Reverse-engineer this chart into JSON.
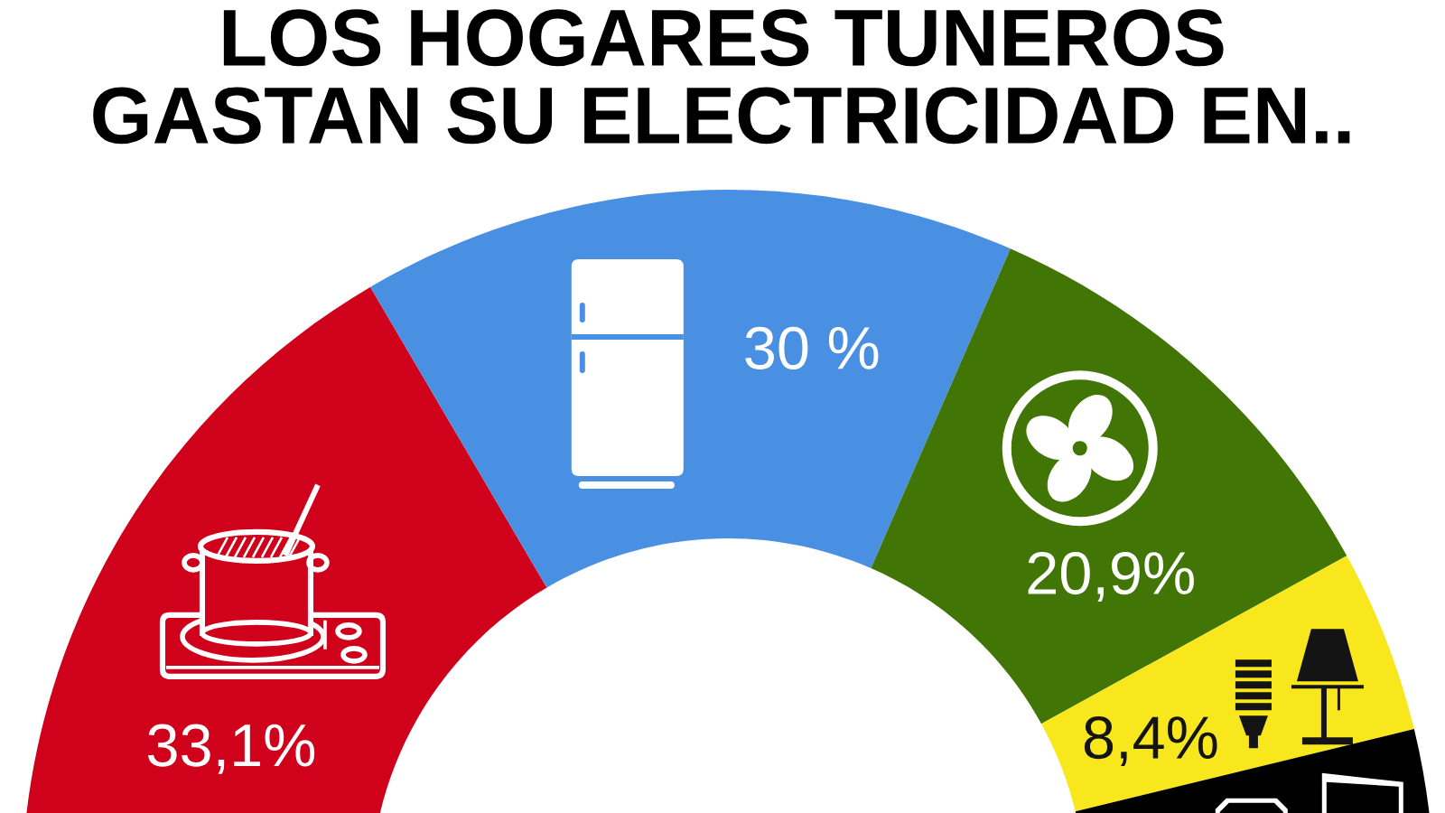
{
  "chart_data": {
    "type": "donut",
    "title": "LOS HOGARES TUNEROS\nGASTAN SU ELECTRICIDAD EN..",
    "categories": [
      null,
      null,
      null,
      null,
      null
    ],
    "values": [
      33.1,
      30,
      20.9,
      8.4,
      7.6
    ],
    "colors": [
      "#d0021b",
      "#4a90e2",
      "#417505",
      "#f8e71c",
      "#000000"
    ],
    "value_labels": [
      "33,1%",
      "30 %",
      "20,9%",
      "8,4%",
      null
    ]
  }
}
